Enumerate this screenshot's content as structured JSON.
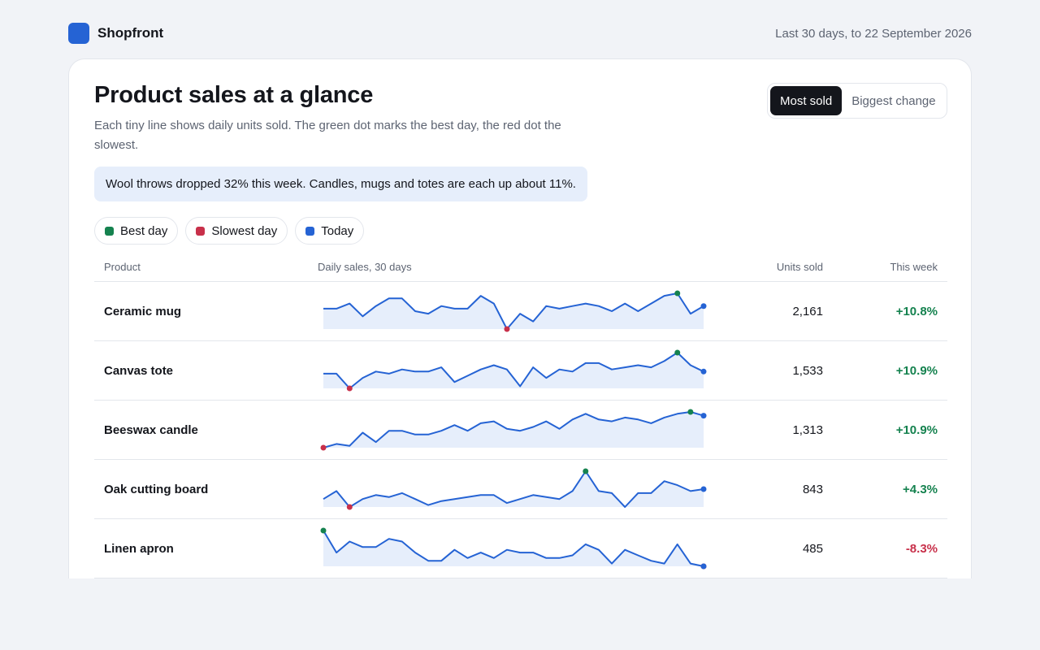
{
  "brand": {
    "name": "Shopfront"
  },
  "date_range": "Last 30 days, to 22 September 2026",
  "header": {
    "title": "Product sales at a glance",
    "subtitle": "Each tiny line shows daily units sold. The green dot marks the best day, the red dot the slowest."
  },
  "sort_toggle": {
    "options": [
      "Most sold",
      "Biggest change"
    ],
    "selected": "Most sold"
  },
  "insight": "Wool throws dropped 32% this week. Candles, mugs and totes are each up about 11%.",
  "legend": [
    {
      "label": "Best day",
      "color": "#15824f"
    },
    {
      "label": "Slowest day",
      "color": "#c8304a"
    },
    {
      "label": "Today",
      "color": "#2563d4"
    }
  ],
  "table": {
    "columns": [
      "Product",
      "Daily sales, 30 days",
      "Units sold",
      "This week"
    ],
    "rows": [
      {
        "product": "Ceramic mug",
        "units": "2,161",
        "change": "+10.8%",
        "trend": "up",
        "daily": [
          72,
          72,
          74,
          69,
          73,
          76,
          76,
          71,
          70,
          73,
          72,
          72,
          77,
          74,
          64,
          70,
          67,
          73,
          72,
          73,
          74,
          73,
          71,
          74,
          71,
          74,
          77,
          78,
          70,
          73
        ]
      },
      {
        "product": "Canvas tote",
        "units": "1,533",
        "change": "+10.9%",
        "trend": "up",
        "daily": [
          51,
          51,
          44,
          49,
          52,
          51,
          53,
          52,
          52,
          54,
          47,
          50,
          53,
          55,
          53,
          45,
          54,
          49,
          53,
          52,
          56,
          56,
          53,
          54,
          55,
          54,
          57,
          61,
          55,
          52
        ]
      },
      {
        "product": "Beeswax candle",
        "units": "1,313",
        "change": "+10.9%",
        "trend": "up",
        "daily": [
          32,
          34,
          33,
          40,
          35,
          41,
          41,
          39,
          39,
          41,
          44,
          41,
          45,
          46,
          42,
          41,
          43,
          46,
          42,
          47,
          50,
          47,
          46,
          48,
          47,
          45,
          48,
          50,
          51,
          49
        ]
      },
      {
        "product": "Oak cutting board",
        "units": "843",
        "change": "+4.3%",
        "trend": "up",
        "daily": [
          29,
          33,
          25,
          29,
          31,
          30,
          32,
          29,
          26,
          28,
          29,
          30,
          31,
          31,
          27,
          29,
          31,
          30,
          29,
          33,
          43,
          33,
          32,
          25,
          32,
          32,
          38,
          36,
          33,
          34
        ]
      },
      {
        "product": "Linen apron",
        "units": "485",
        "change": "-8.3%",
        "trend": "down",
        "daily": [
          32,
          24,
          28,
          26,
          26,
          29,
          28,
          24,
          21,
          21,
          25,
          22,
          24,
          22,
          25,
          24,
          24,
          22,
          22,
          23,
          27,
          25,
          20,
          25,
          23,
          21,
          20,
          27,
          20,
          19
        ]
      }
    ]
  },
  "colors": {
    "accent": "#2563d4",
    "best": "#15824f",
    "slowest": "#c8304a",
    "line": "#2563d4",
    "area": "#e6eefb"
  }
}
